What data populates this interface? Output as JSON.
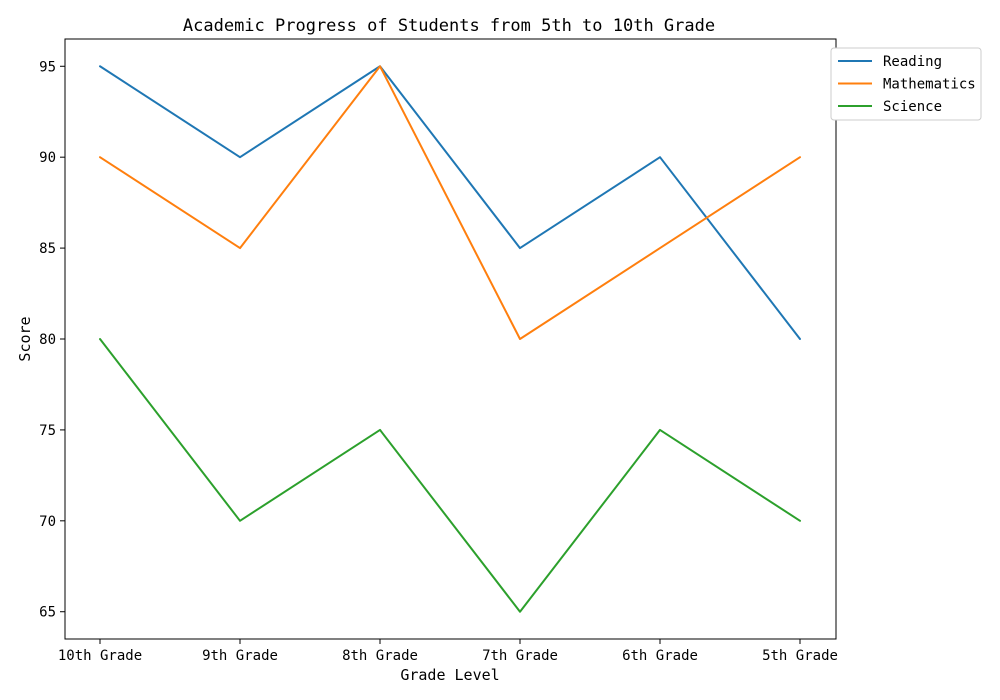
{
  "chart_data": {
    "type": "line",
    "title": "Academic Progress of Students from 5th to 10th Grade",
    "xlabel": "Grade Level",
    "ylabel": "Score",
    "categories": [
      "10th Grade",
      "9th Grade",
      "8th Grade",
      "7th Grade",
      "6th Grade",
      "5th Grade"
    ],
    "ylim": [
      63.5,
      96.5
    ],
    "yticks": [
      65,
      70,
      75,
      80,
      85,
      90,
      95
    ],
    "grid": false,
    "legend_position": "top-right",
    "series": [
      {
        "name": "Reading",
        "color": "#1f77b4",
        "values": [
          95,
          90,
          95,
          85,
          90,
          80
        ]
      },
      {
        "name": "Mathematics",
        "color": "#ff7f0e",
        "values": [
          90,
          85,
          95,
          80,
          85,
          90
        ]
      },
      {
        "name": "Science",
        "color": "#2ca02c",
        "values": [
          80,
          70,
          75,
          65,
          75,
          70
        ]
      }
    ]
  }
}
